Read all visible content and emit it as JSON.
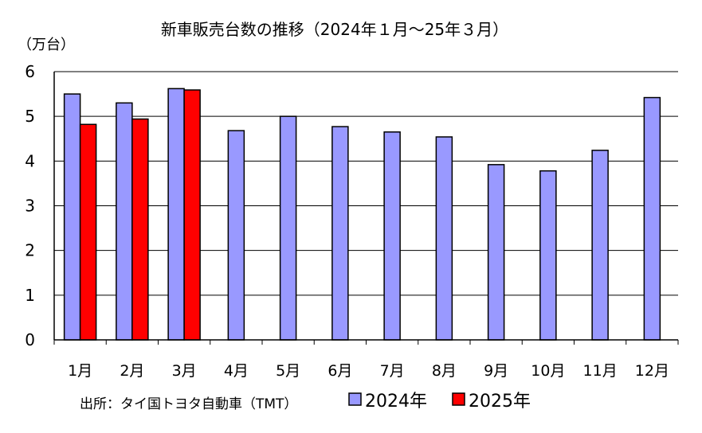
{
  "chart_data": {
    "type": "bar",
    "title": "新車販売台数の推移（2024年１月～25年３月）",
    "ylabel": "（万台）",
    "xlabel": "",
    "ylim": [
      0,
      6
    ],
    "yticks": [
      0,
      1,
      2,
      3,
      4,
      5,
      6
    ],
    "grid": true,
    "legend_position": "bottom",
    "categories": [
      "1月",
      "2月",
      "3月",
      "4月",
      "5月",
      "6月",
      "7月",
      "8月",
      "9月",
      "10月",
      "11月",
      "12月"
    ],
    "series": [
      {
        "name": "2024年",
        "color": "#9999ff",
        "values": [
          5.5,
          5.3,
          5.62,
          4.68,
          5.0,
          4.77,
          4.65,
          4.54,
          3.92,
          3.78,
          4.24,
          5.42
        ]
      },
      {
        "name": "2025年",
        "color": "#ff0000",
        "values": [
          4.82,
          4.94,
          5.59,
          null,
          null,
          null,
          null,
          null,
          null,
          null,
          null,
          null
        ]
      }
    ],
    "source_note": "出所：タイ国トヨタ自動車（TMT）"
  }
}
